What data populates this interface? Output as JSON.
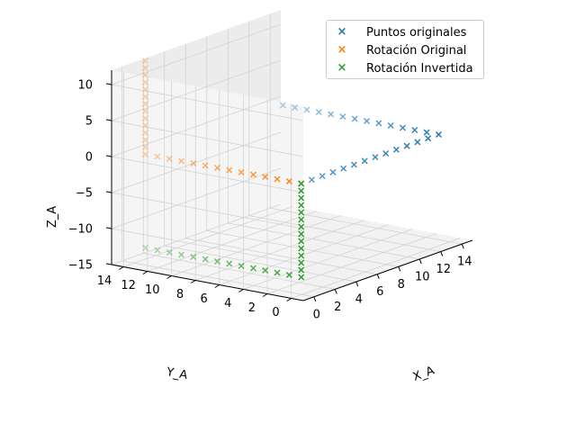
{
  "chart_data": {
    "type": "scatter",
    "projection": "3d",
    "title": "",
    "xlabel": "X_A",
    "ylabel": "Y_A",
    "zlabel": "Z_A",
    "xlim": [
      -1,
      15
    ],
    "ylim": [
      -1,
      15
    ],
    "zlim": [
      -15,
      12
    ],
    "xticks": [
      "0",
      "2",
      "4",
      "6",
      "8",
      "10",
      "12",
      "14"
    ],
    "yticks": [
      "0",
      "2",
      "4",
      "6",
      "8",
      "10",
      "12",
      "14"
    ],
    "zticks": [
      "−15",
      "−10",
      "−5",
      "0",
      "5",
      "10"
    ],
    "grid": true,
    "marker": "x",
    "legend_position": "top-right",
    "series": [
      {
        "name": "Puntos originales",
        "color": "#1f77b4",
        "points": [
          [
            0.5,
            0.5,
            0
          ],
          [
            1.5,
            0.5,
            0
          ],
          [
            2.5,
            0.5,
            0
          ],
          [
            3.5,
            0.5,
            0
          ],
          [
            4.5,
            0.5,
            0
          ],
          [
            5.5,
            0.5,
            0
          ],
          [
            6.5,
            0.5,
            0
          ],
          [
            7.5,
            0.5,
            0
          ],
          [
            8.5,
            0.5,
            0
          ],
          [
            9.5,
            0.5,
            0
          ],
          [
            10.5,
            0.5,
            0
          ],
          [
            11.5,
            0.5,
            0
          ],
          [
            12.5,
            0.5,
            0
          ],
          [
            13.5,
            0.5,
            0
          ],
          [
            13.5,
            1.5,
            0
          ],
          [
            13.5,
            2.5,
            0
          ],
          [
            13.5,
            3.5,
            0
          ],
          [
            13.5,
            4.5,
            0
          ],
          [
            13.5,
            5.5,
            0
          ],
          [
            13.5,
            6.5,
            0
          ],
          [
            13.5,
            7.5,
            0
          ],
          [
            13.5,
            8.5,
            0
          ],
          [
            13.5,
            9.5,
            0
          ],
          [
            13.5,
            10.5,
            0
          ],
          [
            13.5,
            11.5,
            0
          ],
          [
            13.5,
            12.5,
            0
          ],
          [
            13.5,
            13.5,
            0
          ]
        ]
      },
      {
        "name": "Rotación Original",
        "color": "#ff7f0e",
        "points": [
          [
            0.5,
            0.5,
            0
          ],
          [
            0.5,
            1.5,
            0
          ],
          [
            0.5,
            2.5,
            0
          ],
          [
            0.5,
            3.5,
            0
          ],
          [
            0.5,
            4.5,
            0
          ],
          [
            0.5,
            5.5,
            0
          ],
          [
            0.5,
            6.5,
            0
          ],
          [
            0.5,
            7.5,
            0
          ],
          [
            0.5,
            8.5,
            0
          ],
          [
            0.5,
            9.5,
            0
          ],
          [
            0.5,
            10.5,
            0
          ],
          [
            0.5,
            11.5,
            0
          ],
          [
            0.5,
            12.5,
            0
          ],
          [
            0.5,
            13.5,
            0
          ],
          [
            0.5,
            13.5,
            1
          ],
          [
            0.5,
            13.5,
            2
          ],
          [
            0.5,
            13.5,
            3
          ],
          [
            0.5,
            13.5,
            4
          ],
          [
            0.5,
            13.5,
            5
          ],
          [
            0.5,
            13.5,
            6
          ],
          [
            0.5,
            13.5,
            7
          ],
          [
            0.5,
            13.5,
            8
          ],
          [
            0.5,
            13.5,
            9
          ],
          [
            0.5,
            13.5,
            10
          ],
          [
            0.5,
            13.5,
            11
          ],
          [
            0.5,
            13.5,
            12
          ],
          [
            0.5,
            13.5,
            13
          ]
        ]
      },
      {
        "name": "Rotación Invertida",
        "color": "#2ca02c",
        "points": [
          [
            0.5,
            0.5,
            0
          ],
          [
            0.5,
            0.5,
            -1
          ],
          [
            0.5,
            0.5,
            -2
          ],
          [
            0.5,
            0.5,
            -3
          ],
          [
            0.5,
            0.5,
            -4
          ],
          [
            0.5,
            0.5,
            -5
          ],
          [
            0.5,
            0.5,
            -6
          ],
          [
            0.5,
            0.5,
            -7
          ],
          [
            0.5,
            0.5,
            -8
          ],
          [
            0.5,
            0.5,
            -9
          ],
          [
            0.5,
            0.5,
            -10
          ],
          [
            0.5,
            0.5,
            -11
          ],
          [
            0.5,
            0.5,
            -12
          ],
          [
            0.5,
            0.5,
            -13
          ],
          [
            0.5,
            1.5,
            -13
          ],
          [
            0.5,
            2.5,
            -13
          ],
          [
            0.5,
            3.5,
            -13
          ],
          [
            0.5,
            4.5,
            -13
          ],
          [
            0.5,
            5.5,
            -13
          ],
          [
            0.5,
            6.5,
            -13
          ],
          [
            0.5,
            7.5,
            -13
          ],
          [
            0.5,
            8.5,
            -13
          ],
          [
            0.5,
            9.5,
            -13
          ],
          [
            0.5,
            10.5,
            -13
          ],
          [
            0.5,
            11.5,
            -13
          ],
          [
            0.5,
            12.5,
            -13
          ],
          [
            0.5,
            13.5,
            -13
          ]
        ]
      }
    ]
  }
}
